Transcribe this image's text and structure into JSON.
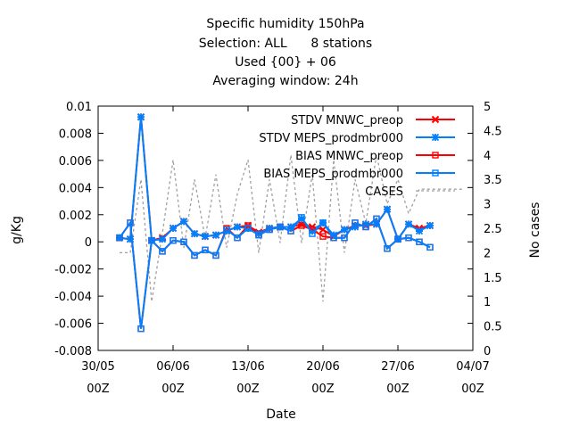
{
  "chart_data": {
    "type": "line",
    "title_lines": [
      "Specific humidity 150hPa",
      "Selection: ALL      8 stations",
      "Used {00} + 06",
      "Averaging window: 24h"
    ],
    "xlabel": "Date",
    "ylabel": "g/Kg",
    "y2label": "No cases",
    "xlim": [
      "2023-05-30",
      "2023-07-04"
    ],
    "x_ticks": [
      {
        "date": "2023-05-30",
        "day": "30/05",
        "hour": "00Z"
      },
      {
        "date": "2023-06-06",
        "day": "06/06",
        "hour": "00Z"
      },
      {
        "date": "2023-06-13",
        "day": "13/06",
        "hour": "00Z"
      },
      {
        "date": "2023-06-20",
        "day": "20/06",
        "hour": "00Z"
      },
      {
        "date": "2023-06-27",
        "day": "27/06",
        "hour": "00Z"
      },
      {
        "date": "2023-07-04",
        "day": "04/07",
        "hour": "00Z"
      }
    ],
    "ylim": [
      -0.008,
      0.01
    ],
    "y_ticks": [
      "-0.008",
      "-0.006",
      "-0.004",
      "-0.002",
      "0",
      "0.002",
      "0.004",
      "0.006",
      "0.008",
      "0.01"
    ],
    "y2lim": [
      0,
      5
    ],
    "y2_ticks": [
      "0",
      "0.5",
      "1",
      "1.5",
      "2",
      "2.5",
      "3",
      "3.5",
      "4",
      "4.5",
      "5"
    ],
    "grid": false,
    "legend_position": "top-right",
    "x": [
      "2023-06-01",
      "2023-06-02",
      "2023-06-03",
      "2023-06-04",
      "2023-06-05",
      "2023-06-06",
      "2023-06-07",
      "2023-06-08",
      "2023-06-09",
      "2023-06-10",
      "2023-06-11",
      "2023-06-12",
      "2023-06-13",
      "2023-06-14",
      "2023-06-15",
      "2023-06-16",
      "2023-06-17",
      "2023-06-18",
      "2023-06-19",
      "2023-06-20",
      "2023-06-21",
      "2023-06-22",
      "2023-06-23",
      "2023-06-24",
      "2023-06-25",
      "2023-06-26",
      "2023-06-27",
      "2023-06-28",
      "2023-06-29",
      "2023-06-30"
    ],
    "series": [
      {
        "name": "STDV MNWC_preop",
        "color": "#ff0000",
        "marker": "cross",
        "axis": "y1",
        "values": [
          0.0003,
          0.0002,
          0.0092,
          0.0001,
          0.0003,
          0.001,
          0.0015,
          0.0006,
          0.0004,
          0.0005,
          0.0008,
          0.0011,
          0.0012,
          0.0007,
          0.001,
          0.0011,
          0.0011,
          0.0013,
          0.0011,
          0.0009,
          0.0004,
          0.0009,
          0.0012,
          0.0012,
          0.0013,
          0.0024,
          0.0002,
          0.0013,
          0.001,
          0.0012
        ]
      },
      {
        "name": "STDV MEPS_prodmbr000",
        "color": "#0080ff",
        "marker": "star",
        "axis": "y1",
        "values": [
          0.0003,
          0.0002,
          0.0092,
          0.0001,
          0.0002,
          0.001,
          0.0015,
          0.0006,
          0.0004,
          0.0005,
          0.0008,
          0.0011,
          0.001,
          0.0006,
          0.001,
          0.0011,
          0.0011,
          0.0017,
          0.0008,
          0.0014,
          0.0005,
          0.0009,
          0.0011,
          0.0013,
          0.0013,
          0.0024,
          0.0002,
          0.0013,
          0.0008,
          0.0012
        ]
      },
      {
        "name": "BIAS MNWC_preop",
        "color": "#ff0000",
        "marker": "square",
        "axis": "y1",
        "values": [
          0.0003,
          0.0014,
          -0.0064,
          0.0001,
          -0.0007,
          0.0001,
          0.0,
          -0.001,
          -0.0006,
          -0.001,
          0.001,
          0.0003,
          0.0012,
          0.0005,
          0.0009,
          0.0011,
          0.0008,
          0.0012,
          0.0009,
          0.0004,
          0.0003,
          0.0003,
          0.0014,
          0.0011,
          0.0017,
          -0.0005,
          0.0002,
          0.0003,
          0.0,
          -0.0004
        ]
      },
      {
        "name": "BIAS MEPS_prodmbr000",
        "color": "#0080ff",
        "marker": "square",
        "axis": "y1",
        "values": [
          0.0003,
          0.0014,
          -0.0064,
          0.0001,
          -0.0007,
          0.0001,
          0.0,
          -0.001,
          -0.0006,
          -0.001,
          0.0009,
          0.0003,
          0.001,
          0.0005,
          0.0009,
          0.0011,
          0.0008,
          0.0018,
          0.0006,
          0.0014,
          0.0003,
          0.0003,
          0.0014,
          0.0011,
          0.0017,
          -0.0005,
          0.0002,
          0.0003,
          0.0,
          -0.0004
        ]
      },
      {
        "name": "CASES",
        "color": "#a0a0a0",
        "style": "dashed",
        "axis": "y2",
        "x": [
          "2023-06-01",
          "2023-06-02",
          "2023-06-03",
          "2023-06-04",
          "2023-06-05",
          "2023-06-06",
          "2023-06-07",
          "2023-06-08",
          "2023-06-09",
          "2023-06-10",
          "2023-06-11",
          "2023-06-12",
          "2023-06-13",
          "2023-06-14",
          "2023-06-15",
          "2023-06-16",
          "2023-06-17",
          "2023-06-18",
          "2023-06-19",
          "2023-06-20",
          "2023-06-21",
          "2023-06-22",
          "2023-06-23",
          "2023-06-24",
          "2023-06-25",
          "2023-06-26",
          "2023-06-27",
          "2023-06-28",
          "2023-06-29",
          "2023-06-30",
          "2023-07-01",
          "2023-07-02",
          "2023-07-03"
        ],
        "values": [
          2.0,
          2.0,
          3.5,
          1.0,
          2.4,
          3.9,
          2.1,
          3.5,
          2.3,
          3.6,
          2.1,
          3.2,
          3.9,
          2.0,
          3.5,
          2.2,
          4.0,
          2.2,
          3.6,
          1.0,
          3.9,
          2.0,
          3.5,
          2.6,
          4.0,
          3.0,
          3.5,
          2.8,
          3.3,
          3.3,
          3.3,
          3.3,
          3.3
        ]
      }
    ]
  }
}
